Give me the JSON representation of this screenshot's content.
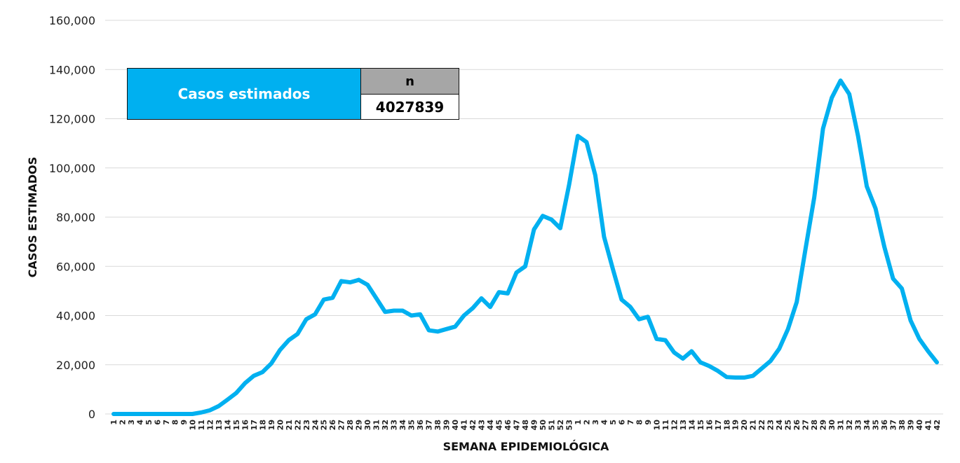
{
  "chart_data": {
    "type": "line",
    "title": "",
    "xlabel": "SEMANA EPIDEMIOLÓGICA",
    "ylabel": "CASOS ESTIMADOS",
    "ylim": [
      0,
      160000
    ],
    "y_ticks": [
      "0",
      "20,000",
      "40,000",
      "60,000",
      "80,000",
      "100,000",
      "120,000",
      "140,000",
      "160,000"
    ],
    "grid": true,
    "categories": [
      "1",
      "2",
      "3",
      "4",
      "5",
      "6",
      "7",
      "8",
      "9",
      "10",
      "11",
      "12",
      "13",
      "14",
      "15",
      "16",
      "17",
      "18",
      "19",
      "20",
      "21",
      "22",
      "23",
      "24",
      "25",
      "26",
      "27",
      "28",
      "29",
      "30",
      "31",
      "32",
      "33",
      "34",
      "35",
      "36",
      "37",
      "38",
      "39",
      "40",
      "41",
      "42",
      "43",
      "44",
      "45",
      "46",
      "47",
      "48",
      "49",
      "50",
      "51",
      "52",
      "53",
      "1",
      "2",
      "3",
      "4",
      "5",
      "6",
      "7",
      "8",
      "9",
      "10",
      "11",
      "12",
      "13",
      "14",
      "15",
      "16",
      "17",
      "18",
      "19",
      "20",
      "21",
      "22",
      "23",
      "24",
      "25",
      "26",
      "27",
      "28",
      "29",
      "30",
      "31",
      "32",
      "33",
      "34",
      "35",
      "36",
      "37",
      "38",
      "39",
      "40",
      "41",
      "42"
    ],
    "series": [
      {
        "color": "#00b0f0",
        "values": [
          0,
          0,
          0,
          0,
          0,
          0,
          0,
          0,
          0,
          0,
          600,
          1500,
          3200,
          5800,
          8500,
          12500,
          15500,
          17000,
          20500,
          26000,
          30000,
          32500,
          38500,
          40500,
          46500,
          47200,
          54000,
          53500,
          54500,
          52500,
          47000,
          41500,
          42000,
          42000,
          40000,
          40500,
          34000,
          33500,
          34500,
          35500,
          40000,
          43000,
          47000,
          43500,
          49500,
          49000,
          57500,
          60000,
          75000,
          80500,
          79000,
          75500,
          93000,
          113000,
          110500,
          97000,
          72000,
          59000,
          46500,
          43500,
          38500,
          39500,
          30500,
          30000,
          25000,
          22500,
          25500,
          21000,
          19500,
          17500,
          15000,
          14800,
          14800,
          15500,
          18500,
          21500,
          26500,
          34500,
          45500,
          67000,
          88000,
          116000,
          128500,
          135500,
          130000,
          113000,
          92500,
          83500,
          68000,
          55000,
          51000,
          38000,
          30500,
          25500,
          21000
        ]
      }
    ]
  },
  "info_box": {
    "label": "Casos estimados",
    "header": "n",
    "value": "4027839"
  }
}
